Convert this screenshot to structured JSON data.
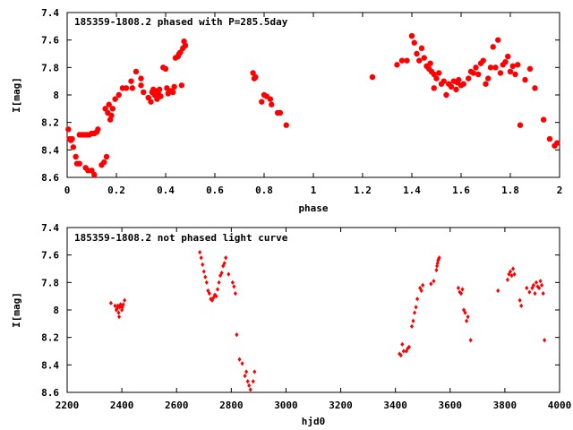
{
  "chart_data": [
    {
      "type": "scatter",
      "title": "185359-1808.2 phased with P=285.5day",
      "xlabel": "phase",
      "ylabel": "I[mag]",
      "xlim": [
        0,
        2
      ],
      "ylim": [
        8.6,
        7.4
      ],
      "y_inverted": true,
      "grid": false,
      "marker": "filled-circle",
      "color": "#ff0000",
      "xticks": [
        "0",
        "0.2",
        "0.4",
        "0.6",
        "0.8",
        "1",
        "1.2",
        "1.4",
        "1.6",
        "1.8",
        "2"
      ],
      "yticks": [
        "7.4",
        "7.6",
        "7.8",
        "8",
        "8.2",
        "8.4",
        "8.6"
      ],
      "points": [
        [
          0.005,
          8.25
        ],
        [
          0.01,
          8.32
        ],
        [
          0.015,
          8.33
        ],
        [
          0.02,
          8.32
        ],
        [
          0.025,
          8.38
        ],
        [
          0.035,
          8.45
        ],
        [
          0.04,
          8.5
        ],
        [
          0.05,
          8.5
        ],
        [
          0.05,
          8.29
        ],
        [
          0.06,
          8.29
        ],
        [
          0.07,
          8.29
        ],
        [
          0.075,
          8.53
        ],
        [
          0.08,
          8.29
        ],
        [
          0.085,
          8.55
        ],
        [
          0.09,
          8.29
        ],
        [
          0.1,
          8.28
        ],
        [
          0.11,
          8.28
        ],
        [
          0.1,
          8.55
        ],
        [
          0.11,
          8.58
        ],
        [
          0.12,
          8.27
        ],
        [
          0.125,
          8.25
        ],
        [
          0.14,
          8.51
        ],
        [
          0.15,
          8.49
        ],
        [
          0.16,
          8.45
        ],
        [
          0.155,
          8.1
        ],
        [
          0.165,
          8.13
        ],
        [
          0.175,
          8.18
        ],
        [
          0.18,
          8.15
        ],
        [
          0.17,
          8.07
        ],
        [
          0.185,
          8.1
        ],
        [
          0.195,
          8.03
        ],
        [
          0.21,
          8.0
        ],
        [
          0.225,
          7.95
        ],
        [
          0.24,
          7.95
        ],
        [
          0.26,
          7.9
        ],
        [
          0.265,
          7.95
        ],
        [
          0.28,
          7.83
        ],
        [
          0.3,
          7.88
        ],
        [
          0.3,
          7.93
        ],
        [
          0.31,
          7.98
        ],
        [
          0.33,
          8.02
        ],
        [
          0.34,
          8.05
        ],
        [
          0.345,
          7.98
        ],
        [
          0.35,
          7.96
        ],
        [
          0.355,
          8.0
        ],
        [
          0.36,
          7.97
        ],
        [
          0.365,
          8.03
        ],
        [
          0.37,
          7.99
        ],
        [
          0.375,
          7.96
        ],
        [
          0.38,
          8.01
        ],
        [
          0.39,
          7.8
        ],
        [
          0.4,
          7.81
        ],
        [
          0.405,
          7.95
        ],
        [
          0.41,
          7.99
        ],
        [
          0.42,
          7.97
        ],
        [
          0.43,
          7.98
        ],
        [
          0.435,
          7.94
        ],
        [
          0.44,
          7.73
        ],
        [
          0.45,
          7.72
        ],
        [
          0.455,
          7.7
        ],
        [
          0.46,
          7.69
        ],
        [
          0.47,
          7.66
        ],
        [
          0.475,
          7.61
        ],
        [
          0.48,
          7.64
        ],
        [
          0.465,
          7.93
        ],
        [
          0.755,
          7.84
        ],
        [
          0.76,
          7.88
        ],
        [
          0.765,
          7.87
        ],
        [
          0.79,
          8.05
        ],
        [
          0.8,
          8.0
        ],
        [
          0.81,
          8.01
        ],
        [
          0.825,
          8.03
        ],
        [
          0.83,
          8.07
        ],
        [
          0.855,
          8.13
        ],
        [
          0.865,
          8.13
        ],
        [
          0.89,
          8.22
        ],
        [
          1.24,
          7.87
        ],
        [
          1.34,
          7.78
        ],
        [
          1.36,
          7.75
        ],
        [
          1.38,
          7.75
        ],
        [
          1.4,
          7.57
        ],
        [
          1.41,
          7.62
        ],
        [
          1.42,
          7.7
        ],
        [
          1.43,
          7.75
        ],
        [
          1.44,
          7.66
        ],
        [
          1.45,
          7.73
        ],
        [
          1.46,
          7.79
        ],
        [
          1.47,
          7.81
        ],
        [
          1.475,
          7.77
        ],
        [
          1.48,
          7.83
        ],
        [
          1.49,
          7.85
        ],
        [
          1.49,
          7.95
        ],
        [
          1.5,
          7.88
        ],
        [
          1.51,
          7.84
        ],
        [
          1.52,
          7.92
        ],
        [
          1.53,
          7.9
        ],
        [
          1.54,
          8.0
        ],
        [
          1.55,
          7.92
        ],
        [
          1.56,
          7.94
        ],
        [
          1.57,
          7.9
        ],
        [
          1.58,
          7.96
        ],
        [
          1.585,
          7.91
        ],
        [
          1.59,
          7.89
        ],
        [
          1.6,
          7.93
        ],
        [
          1.61,
          7.92
        ],
        [
          1.63,
          7.88
        ],
        [
          1.64,
          7.83
        ],
        [
          1.65,
          7.84
        ],
        [
          1.66,
          7.8
        ],
        [
          1.67,
          7.85
        ],
        [
          1.68,
          7.77
        ],
        [
          1.69,
          7.75
        ],
        [
          1.7,
          7.92
        ],
        [
          1.71,
          7.88
        ],
        [
          1.72,
          7.8
        ],
        [
          1.73,
          7.65
        ],
        [
          1.74,
          7.8
        ],
        [
          1.75,
          7.6
        ],
        [
          1.76,
          7.84
        ],
        [
          1.77,
          7.78
        ],
        [
          1.78,
          7.76
        ],
        [
          1.79,
          7.72
        ],
        [
          1.8,
          7.83
        ],
        [
          1.81,
          7.79
        ],
        [
          1.82,
          7.85
        ],
        [
          1.83,
          7.78
        ],
        [
          1.84,
          8.22
        ],
        [
          1.86,
          7.89
        ],
        [
          1.88,
          7.81
        ],
        [
          1.9,
          7.95
        ],
        [
          1.935,
          8.18
        ],
        [
          1.96,
          8.32
        ],
        [
          1.98,
          8.37
        ],
        [
          1.99,
          8.35
        ]
      ]
    },
    {
      "type": "scatter",
      "title": "185359-1808.2 not phased light curve",
      "xlabel": "hjd0",
      "ylabel": "I[mag]",
      "xlim": [
        2200,
        4000
      ],
      "ylim": [
        8.6,
        7.4
      ],
      "y_inverted": true,
      "grid": false,
      "marker": "small-diamond",
      "color": "#ff0000",
      "xticks": [
        "2200",
        "2400",
        "2600",
        "2800",
        "3000",
        "3200",
        "3400",
        "3600",
        "3800",
        "4000"
      ],
      "yticks": [
        "7.4",
        "7.6",
        "7.8",
        "8",
        "8.2",
        "8.4",
        "8.6"
      ],
      "points": [
        [
          2360,
          7.95
        ],
        [
          2375,
          7.97
        ],
        [
          2380,
          8.0
        ],
        [
          2382,
          7.99
        ],
        [
          2385,
          7.97
        ],
        [
          2388,
          8.02
        ],
        [
          2390,
          8.05
        ],
        [
          2392,
          7.98
        ],
        [
          2395,
          7.96
        ],
        [
          2398,
          7.97
        ],
        [
          2400,
          8.0
        ],
        [
          2402,
          7.98
        ],
        [
          2405,
          7.96
        ],
        [
          2410,
          7.93
        ],
        [
          2685,
          7.58
        ],
        [
          2690,
          7.62
        ],
        [
          2695,
          7.67
        ],
        [
          2700,
          7.72
        ],
        [
          2705,
          7.76
        ],
        [
          2710,
          7.8
        ],
        [
          2715,
          7.86
        ],
        [
          2720,
          7.88
        ],
        [
          2725,
          7.92
        ],
        [
          2730,
          7.93
        ],
        [
          2735,
          7.91
        ],
        [
          2740,
          7.89
        ],
        [
          2745,
          7.9
        ],
        [
          2750,
          7.85
        ],
        [
          2755,
          7.8
        ],
        [
          2760,
          7.75
        ],
        [
          2765,
          7.73
        ],
        [
          2770,
          7.68
        ],
        [
          2775,
          7.66
        ],
        [
          2780,
          7.62
        ],
        [
          2790,
          7.74
        ],
        [
          2805,
          7.8
        ],
        [
          2810,
          7.83
        ],
        [
          2815,
          7.88
        ],
        [
          2820,
          8.18
        ],
        [
          2830,
          8.36
        ],
        [
          2840,
          8.39
        ],
        [
          2850,
          8.48
        ],
        [
          2855,
          8.45
        ],
        [
          2860,
          8.52
        ],
        [
          2865,
          8.55
        ],
        [
          2870,
          8.58
        ],
        [
          2880,
          8.52
        ],
        [
          2885,
          8.45
        ],
        [
          3415,
          8.32
        ],
        [
          3420,
          8.33
        ],
        [
          3425,
          8.25
        ],
        [
          3430,
          8.3
        ],
        [
          3440,
          8.3
        ],
        [
          3445,
          8.28
        ],
        [
          3450,
          8.27
        ],
        [
          3460,
          8.12
        ],
        [
          3465,
          8.08
        ],
        [
          3470,
          8.02
        ],
        [
          3475,
          7.98
        ],
        [
          3480,
          7.92
        ],
        [
          3490,
          7.84
        ],
        [
          3495,
          7.86
        ],
        [
          3500,
          7.82
        ],
        [
          3530,
          7.81
        ],
        [
          3540,
          7.79
        ],
        [
          3550,
          7.71
        ],
        [
          3552,
          7.68
        ],
        [
          3554,
          7.66
        ],
        [
          3556,
          7.64
        ],
        [
          3558,
          7.63
        ],
        [
          3560,
          7.62
        ],
        [
          3630,
          7.84
        ],
        [
          3635,
          7.87
        ],
        [
          3640,
          7.88
        ],
        [
          3645,
          7.85
        ],
        [
          3650,
          8.0
        ],
        [
          3655,
          8.02
        ],
        [
          3660,
          8.08
        ],
        [
          3665,
          8.05
        ],
        [
          3675,
          8.22
        ],
        [
          3775,
          7.86
        ],
        [
          3810,
          7.78
        ],
        [
          3815,
          7.74
        ],
        [
          3820,
          7.72
        ],
        [
          3825,
          7.75
        ],
        [
          3830,
          7.7
        ],
        [
          3835,
          7.74
        ],
        [
          3855,
          7.93
        ],
        [
          3860,
          7.97
        ],
        [
          3880,
          7.84
        ],
        [
          3890,
          7.87
        ],
        [
          3900,
          7.84
        ],
        [
          3905,
          7.82
        ],
        [
          3910,
          7.88
        ],
        [
          3915,
          7.8
        ],
        [
          3920,
          7.83
        ],
        [
          3925,
          7.84
        ],
        [
          3930,
          7.79
        ],
        [
          3935,
          7.82
        ],
        [
          3940,
          7.88
        ],
        [
          3945,
          8.22
        ]
      ]
    }
  ]
}
